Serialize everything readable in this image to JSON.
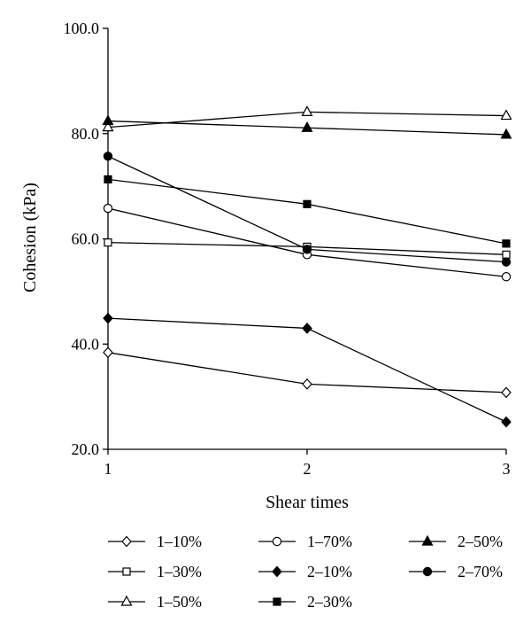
{
  "chart_data": {
    "type": "line",
    "xlabel": "Shear times",
    "ylabel": "Cohesion (kPa)",
    "x": [
      1,
      2,
      3
    ],
    "x_tick_labels": [
      "1",
      "2",
      "3"
    ],
    "ylim": [
      20,
      100
    ],
    "y_ticks": [
      20,
      40,
      60,
      80,
      100
    ],
    "y_tick_labels": [
      "20.0",
      "40.0",
      "60.0",
      "80.0",
      "100.0"
    ],
    "grid": false,
    "legend_position": "bottom",
    "series": [
      {
        "name": "1–10%",
        "marker": "diamond",
        "fill": "open",
        "values": [
          38.4,
          32.4,
          30.8
        ]
      },
      {
        "name": "1–30%",
        "marker": "square",
        "fill": "open",
        "values": [
          59.3,
          58.5,
          57.0
        ]
      },
      {
        "name": "1–50%",
        "marker": "triangle",
        "fill": "open",
        "values": [
          81.2,
          84.1,
          83.4
        ]
      },
      {
        "name": "1–70%",
        "marker": "circle",
        "fill": "open",
        "values": [
          65.8,
          57.0,
          52.8
        ]
      },
      {
        "name": "2–10%",
        "marker": "diamond",
        "fill": "filled",
        "values": [
          44.9,
          43.0,
          25.2
        ]
      },
      {
        "name": "2–30%",
        "marker": "square",
        "fill": "filled",
        "values": [
          71.3,
          66.6,
          59.1
        ]
      },
      {
        "name": "2–50%",
        "marker": "triangle",
        "fill": "filled",
        "values": [
          82.4,
          81.1,
          79.8
        ]
      },
      {
        "name": "2–70%",
        "marker": "circle",
        "fill": "filled",
        "values": [
          75.7,
          58.0,
          55.6
        ]
      }
    ]
  }
}
